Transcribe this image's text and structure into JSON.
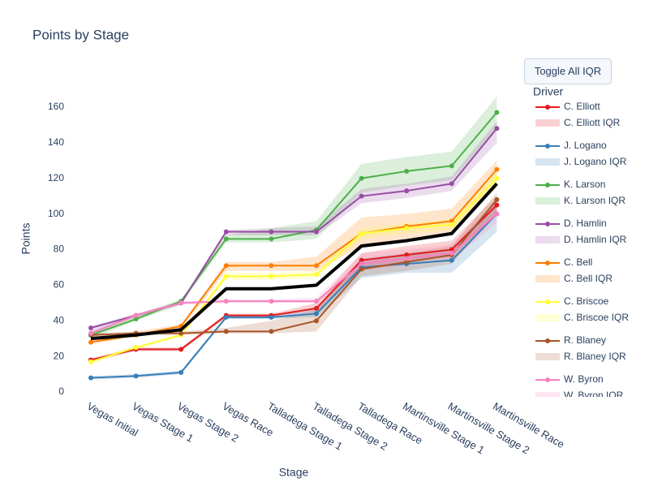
{
  "chart_data": {
    "type": "line",
    "title": "Points by Stage",
    "x_label": "Stage",
    "y_label": "Points",
    "button": "Toggle All IQR",
    "legend_title": "Driver",
    "categories": [
      "Vegas Initial",
      "Vegas Stage 1",
      "Vegas Stage 2",
      "Vegas Race",
      "Talladega Stage 1",
      "Talladega Stage 2",
      "Talladega Race",
      "Martinsville Stage 1",
      "Martinsville Stage 2",
      "Martinsville Race"
    ],
    "ylim": [
      0,
      170
    ],
    "yticks": [
      0,
      20,
      40,
      60,
      80,
      100,
      120,
      140,
      160
    ],
    "series": [
      {
        "name": "C. Elliott",
        "band_name": "C. Elliott IQR",
        "color": "#e41a1c",
        "values": [
          18,
          24,
          24,
          43,
          43,
          47,
          74,
          77,
          80,
          105
        ],
        "lower": [
          17,
          23,
          23,
          42,
          42,
          45,
          70,
          73,
          76,
          100
        ],
        "upper": [
          19,
          25,
          25,
          44,
          44,
          50,
          78,
          82,
          85,
          110
        ]
      },
      {
        "name": "J. Logano",
        "band_name": "J. Logano IQR",
        "color": "#377eb8",
        "values": [
          8,
          9,
          11,
          42,
          42,
          44,
          70,
          72,
          74,
          100
        ],
        "lower": [
          7,
          8,
          10,
          41,
          41,
          42,
          64,
          67,
          67,
          90
        ],
        "upper": [
          9,
          10,
          12,
          43,
          43,
          47,
          75,
          78,
          80,
          108
        ]
      },
      {
        "name": "K. Larson",
        "band_name": "K. Larson IQR",
        "color": "#4daf4a",
        "values": [
          32,
          41,
          51,
          86,
          86,
          91,
          120,
          124,
          127,
          157
        ],
        "lower": [
          30,
          40,
          49,
          84,
          84,
          86,
          112,
          116,
          119,
          148
        ],
        "upper": [
          34,
          43,
          52,
          88,
          92,
          96,
          128,
          132,
          135,
          166
        ]
      },
      {
        "name": "D. Hamlin",
        "band_name": "D. Hamlin IQR",
        "color": "#984ea3",
        "values": [
          36,
          43,
          50,
          90,
          90,
          90,
          110,
          113,
          117,
          148
        ],
        "lower": [
          34,
          42,
          49,
          88,
          88,
          88,
          106,
          109,
          113,
          140
        ],
        "upper": [
          37,
          44,
          51,
          91,
          92,
          93,
          114,
          117,
          121,
          152
        ]
      },
      {
        "name": "C. Bell",
        "band_name": "C. Bell IQR",
        "color": "#ff7f00",
        "values": [
          28,
          32,
          37,
          71,
          71,
          71,
          89,
          93,
          96,
          125
        ],
        "lower": [
          27,
          31,
          35,
          68,
          68,
          68,
          82,
          86,
          90,
          115
        ],
        "upper": [
          30,
          34,
          38,
          73,
          73,
          76,
          98,
          100,
          103,
          130
        ]
      },
      {
        "name": "C. Briscoe",
        "band_name": "C. Briscoe IQR",
        "color": "#ffff33",
        "values": [
          17,
          25,
          32,
          65,
          65,
          66,
          89,
          92,
          94,
          120
        ],
        "lower": [
          16,
          24,
          31,
          63,
          63,
          64,
          86,
          89,
          91,
          115
        ],
        "upper": [
          18,
          26,
          33,
          67,
          67,
          68,
          92,
          95,
          97,
          125
        ]
      },
      {
        "name": "R. Blaney",
        "band_name": "R. Blaney IQR",
        "color": "#a65628",
        "values": [
          32,
          33,
          33,
          34,
          34,
          40,
          69,
          73,
          77,
          108
        ],
        "lower": [
          31,
          32,
          32,
          33,
          33,
          34,
          65,
          68,
          72,
          100
        ],
        "upper": [
          33,
          34,
          34,
          36,
          40,
          46,
          73,
          78,
          82,
          112
        ]
      },
      {
        "name": "W. Byron",
        "band_name": "W. Byron IQR",
        "color": "#f781bf",
        "values": [
          33,
          43,
          50,
          51,
          51,
          51,
          72,
          75,
          78,
          100
        ],
        "lower": [
          32,
          42,
          49,
          50,
          50,
          50,
          68,
          71,
          74,
          95
        ],
        "upper": [
          34,
          44,
          51,
          52,
          52,
          53,
          78,
          80,
          83,
          107
        ]
      }
    ],
    "mean": {
      "color": "#000000",
      "values": [
        30,
        32,
        35,
        58,
        58,
        60,
        82,
        85,
        89,
        117
      ]
    }
  }
}
